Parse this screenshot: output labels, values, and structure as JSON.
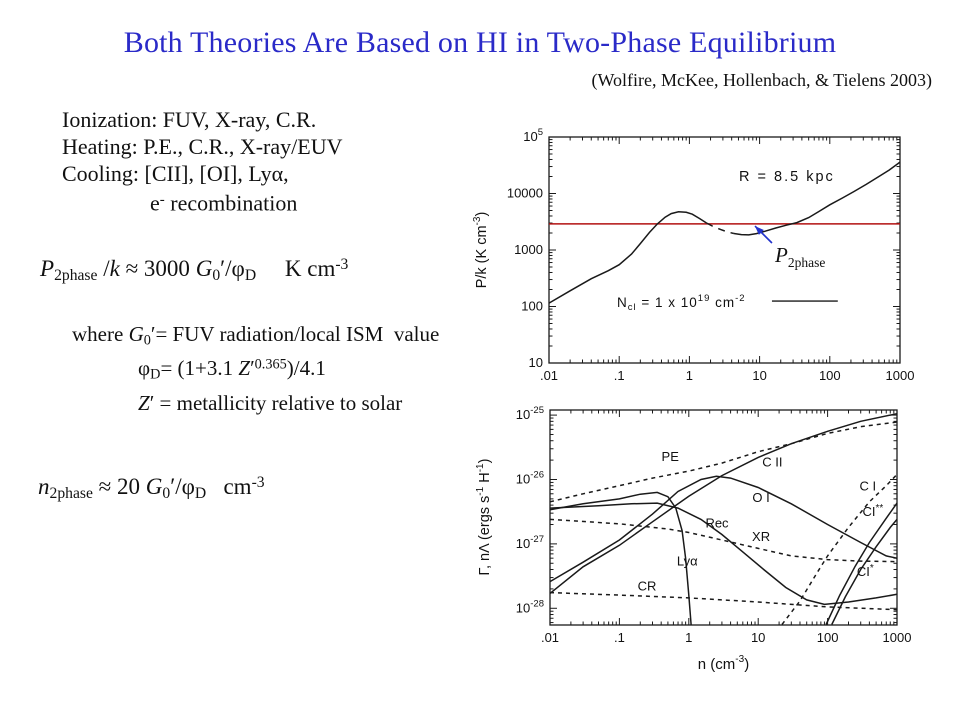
{
  "slide": {
    "title": "Both Theories Are Based on HI in Two-Phase Equilibrium",
    "title_color": "#2a2ac8",
    "citation": "(Wolfire, McKee, Hollenbach, & Tielens 2003)",
    "bullets": {
      "ionization": "Ionization: FUV, X-ray, C.R.",
      "heating": "Heating: P.E., C.R., X-ray/EUV",
      "cooling": "Cooling: [CII], [OI], Lyα,",
      "cooling2_html": "e<sup>-</sup> recombination"
    },
    "equations": {
      "p_eq_html": "<i>P</i><sub>2phase</sub> /<i>k</i> ≈ 3000 <i>G</i><sub>0</sub>′/φ<sub>D</sub>&nbsp;&nbsp;&nbsp;&nbsp; K cm<sup>-3</sup>",
      "where_html": "where <i>G</i><sub>0</sub>′= FUV radiation/local ISM&nbsp; value",
      "phi_html": "φ<sub>D</sub>= (1+3.1 <i>Z</i>′<sup>0.365</sup>)/4.1",
      "z_html": "<i>Z</i>′ = metallicity relative to solar",
      "n_eq_html": "<i>n</i><sub>2phase</sub> ≈ 20 <i>G</i><sub>0</sub>′/φ<sub>D</sub>&nbsp;&nbsp; cm<sup>-3</sup>"
    }
  },
  "colors": {
    "title_blue": "#2a2ac8",
    "red_line": "#b21111",
    "arrow_blue": "#2233cc",
    "ink": "#1a1a1a"
  },
  "chart_data": [
    {
      "id": "pk-vs-n",
      "type": "line",
      "xscale": "log",
      "yscale": "log",
      "xlim": [
        0.01,
        1000
      ],
      "ylim": [
        10,
        100000
      ],
      "ylabel": "P/k (K cm-3)",
      "xticks": [
        {
          "v": 0.01,
          "label": ".01"
        },
        {
          "v": 0.1,
          "label": ".1"
        },
        {
          "v": 1,
          "label": "1"
        },
        {
          "v": 10,
          "label": "10"
        },
        {
          "v": 100,
          "label": "100"
        },
        {
          "v": 1000,
          "label": "1000"
        }
      ],
      "yticks": [
        {
          "v": 100000,
          "runs": [
            {
              "t": "10"
            },
            {
              "t": "5",
              "dy": -6,
              "size": 9.5
            }
          ]
        },
        {
          "v": 10000,
          "runs": [
            {
              "t": "10000"
            }
          ]
        },
        {
          "v": 1000,
          "runs": [
            {
              "t": "1000"
            }
          ]
        },
        {
          "v": 100,
          "runs": [
            {
              "t": "100"
            }
          ]
        },
        {
          "v": 10,
          "runs": [
            {
              "t": "10"
            }
          ]
        }
      ],
      "ylabel_runs": [
        {
          "t": "P/k (K cm"
        },
        {
          "t": "-3",
          "dy": -6,
          "size": 10
        },
        {
          "t": ")"
        }
      ],
      "ylabel_pos": [
        16,
        145
      ],
      "hlines": [
        {
          "y": 2900,
          "color": "#b21111",
          "name": "p2phase-pressure-line"
        }
      ],
      "series": [
        {
          "name": "pk-warm-branch",
          "x": [
            0.01,
            0.02,
            0.04,
            0.07,
            0.1,
            0.15,
            0.2,
            0.27,
            0.35,
            0.45,
            0.55,
            0.7,
            0.9,
            1.1,
            1.4,
            1.75
          ],
          "y": [
            115,
            190,
            310,
            430,
            550,
            850,
            1300,
            2050,
            2900,
            3800,
            4400,
            4750,
            4650,
            4300,
            3600,
            3000
          ]
        },
        {
          "name": "pk-unstable-branch",
          "dash": "7,6",
          "x": [
            1.75,
            2.2,
            2.8,
            3.5,
            4.3
          ],
          "y": [
            3000,
            2600,
            2300,
            2080,
            1960
          ]
        },
        {
          "name": "pk-cold-branch",
          "x": [
            4.3,
            5.5,
            7,
            9,
            12,
            17,
            24,
            34,
            50,
            70,
            100,
            150,
            220,
            330,
            500,
            700,
            1000
          ],
          "y": [
            1960,
            1870,
            1850,
            1950,
            2150,
            2450,
            2750,
            3050,
            3750,
            4800,
            6300,
            8300,
            10800,
            14500,
            20000,
            26000,
            36000
          ]
        }
      ],
      "segments": [
        {
          "x1": 15,
          "y1": 125,
          "x2": 130,
          "y2": 125,
          "name": "ncl-legend-line"
        }
      ],
      "labels": [
        {
          "runs": [
            {
              "t": "R = 8.5  kpc"
            }
          ],
          "x": 24.5,
          "y": 16600,
          "anchor": "middle",
          "size": 14.5,
          "sp": 2,
          "name": "radius-label"
        },
        {
          "runs": [
            {
              "t": "N"
            },
            {
              "t": "cl",
              "dy": 3,
              "size": 9.5
            },
            {
              "t": " = 1 x 10"
            },
            {
              "t": "19",
              "dy": -6,
              "size": 9.5
            },
            {
              "t": " cm"
            },
            {
              "t": "-2",
              "dy": -6,
              "size": 9.5
            }
          ],
          "x": 0.093,
          "y": 97,
          "anchor": "start",
          "size": 13.5,
          "sp": 1,
          "name": "ncl-label"
        },
        {
          "runs": [
            {
              "t": "P",
              "it": 1,
              "ff": "\"Liberation Serif\",serif",
              "size": 21
            },
            {
              "t": "2phase",
              "dy": 5,
              "size": 13.5,
              "ff": "\"Liberation Serif\",serif"
            }
          ],
          "x": 16.6,
          "y": 612,
          "anchor": "start",
          "name": "p2phase-label"
        }
      ],
      "arrows": [
        {
          "x1": 15,
          "y1": 1330,
          "x2": 8.6,
          "y2": 2650,
          "color": "#2233cc",
          "name": "p2phase-arrow"
        }
      ]
    },
    {
      "id": "heating-cooling",
      "type": "line",
      "xscale": "log",
      "yscale": "log",
      "xlim": [
        0.01,
        1000
      ],
      "ylim": [
        5.5e-29,
        1.2e-25
      ],
      "xlabel": "n (cm-3)",
      "ylabel": "Gamma, n-Lambda (ergs s-1 H-1)",
      "xticks": [
        {
          "v": 0.01,
          "label": ".01"
        },
        {
          "v": 0.1,
          "label": ".1"
        },
        {
          "v": 1,
          "label": "1"
        },
        {
          "v": 10,
          "label": "10"
        },
        {
          "v": 100,
          "label": "100"
        },
        {
          "v": 1000,
          "label": "1000"
        }
      ],
      "yticks": [
        {
          "v": 1e-25,
          "runs": [
            {
              "t": "10"
            },
            {
              "t": "-25",
              "dy": -6,
              "size": 9.5
            }
          ]
        },
        {
          "v": 1e-26,
          "runs": [
            {
              "t": "10"
            },
            {
              "t": "-26",
              "dy": -6,
              "size": 9.5
            }
          ]
        },
        {
          "v": 1e-27,
          "runs": [
            {
              "t": "10"
            },
            {
              "t": "-27",
              "dy": -6,
              "size": 9.5
            }
          ]
        },
        {
          "v": 1e-28,
          "runs": [
            {
              "t": "10"
            },
            {
              "t": "-28",
              "dy": -6,
              "size": 9.5
            }
          ]
        }
      ],
      "ylabel_runs": [
        {
          "t": "Γ, nΛ (ergs s"
        },
        {
          "t": "-1",
          "dy": -6,
          "size": 10
        },
        {
          "t": " H"
        },
        {
          "t": "-1",
          "dy": -6,
          "size": 10
        },
        {
          "t": ")"
        }
      ],
      "ylabel_pos": [
        19,
        122
      ],
      "xlabel_runs": [
        {
          "t": "n (cm"
        },
        {
          "t": "-3",
          "dy": -7,
          "size": 10
        },
        {
          "t": ")"
        }
      ],
      "series": [
        {
          "name": "PE-heating",
          "dash": "4,4",
          "x": [
            0.01,
            0.03,
            0.1,
            0.3,
            1,
            3,
            10,
            30,
            100,
            300,
            1000
          ],
          "y": [
            4.5e-27,
            6e-27,
            8e-27,
            1.05e-26,
            1.35e-26,
            1.8e-26,
            2.7e-26,
            3.6e-26,
            5.2e-26,
            6.6e-26,
            7.8e-26
          ]
        },
        {
          "name": "CII-cooling",
          "x": [
            0.01,
            0.03,
            0.1,
            0.3,
            1,
            3,
            10,
            30,
            100,
            300,
            1000
          ],
          "y": [
            1.7e-28,
            4.4e-28,
            9.5e-28,
            2.2e-27,
            5.5e-27,
            1.15e-26,
            2.2e-26,
            3.6e-26,
            5.6e-26,
            8e-26,
            1.05e-25
          ]
        },
        {
          "name": "OI-cooling",
          "x": [
            0.01,
            0.03,
            0.1,
            0.3,
            0.7,
            1.5,
            2.5,
            4,
            10,
            30,
            100,
            300,
            700,
            1000
          ],
          "y": [
            2.6e-28,
            5.2e-28,
            1.15e-27,
            2.9e-27,
            6.5e-27,
            1e-26,
            1.12e-26,
            1.05e-26,
            7.5e-27,
            4.2e-27,
            2e-27,
            1.05e-27,
            6.5e-28,
            6e-28
          ]
        },
        {
          "name": "Lya-cooling",
          "x": [
            0.01,
            0.03,
            0.1,
            0.2,
            0.35,
            0.5,
            0.65,
            0.8,
            0.9,
            1.0,
            1.08
          ],
          "y": [
            3.4e-27,
            4.2e-27,
            5e-27,
            5.9e-27,
            6.3e-27,
            5.4e-27,
            3.6e-27,
            1.6e-27,
            6e-28,
            1.6e-28,
            5.6e-29
          ]
        },
        {
          "name": "Rec-cooling",
          "x": [
            0.01,
            0.05,
            0.15,
            0.35,
            0.7,
            1.5,
            3,
            6,
            12,
            25,
            50,
            90,
            200,
            500,
            1000
          ],
          "y": [
            3.6e-27,
            3.9e-27,
            4.2e-27,
            4.3e-27,
            3.6e-27,
            2.4e-27,
            1.4e-27,
            7.5e-28,
            4e-28,
            2.1e-28,
            1.35e-28,
            1.15e-28,
            1.25e-28,
            1.45e-28,
            1.65e-28
          ]
        },
        {
          "name": "XR-heating",
          "dash": "4,4",
          "x": [
            0.01,
            0.1,
            0.5,
            1,
            3,
            10,
            30,
            100,
            300,
            1000
          ],
          "y": [
            2.4e-27,
            2.05e-27,
            1.7e-27,
            1.5e-27,
            1.15e-27,
            8.5e-28,
            6.5e-28,
            5.7e-28,
            5.4e-28,
            5.3e-28
          ]
        },
        {
          "name": "CR-heating",
          "dash": "4,4",
          "x": [
            0.01,
            0.1,
            1,
            10,
            100,
            1000
          ],
          "y": [
            1.75e-28,
            1.6e-28,
            1.45e-28,
            1.25e-28,
            1.05e-28,
            9.5e-29
          ]
        },
        {
          "name": "CI-heating",
          "dash": "4,4",
          "x": [
            22,
            40,
            70,
            100,
            200,
            400,
            700,
            1000
          ],
          "y": [
            5.6e-29,
            1.3e-28,
            3.5e-28,
            6.5e-28,
            1.8e-27,
            4.5e-27,
            8e-27,
            1.2e-26
          ]
        },
        {
          "name": "CI-starstar-cooling",
          "x": [
            95,
            150,
            250,
            400,
            700,
            1000
          ],
          "y": [
            5.6e-29,
            1.6e-28,
            4.5e-28,
            1.05e-27,
            2.5e-27,
            4.3e-27
          ]
        },
        {
          "name": "CI-star-cooling",
          "x": [
            115,
            180,
            300,
            500,
            800,
            1000
          ],
          "y": [
            5.6e-29,
            1.5e-28,
            4e-28,
            9e-28,
            1.8e-27,
            2.4e-27
          ]
        }
      ],
      "labels": [
        {
          "runs": [
            {
              "t": "PE"
            }
          ],
          "x": 0.54,
          "y": 1.95e-26,
          "anchor": "middle",
          "name": "label-PE"
        },
        {
          "runs": [
            {
              "t": "C II"
            }
          ],
          "x": 16,
          "y": 1.6e-26,
          "anchor": "middle",
          "name": "label-CII"
        },
        {
          "runs": [
            {
              "t": "O I"
            }
          ],
          "x": 11,
          "y": 4.5e-27,
          "anchor": "middle",
          "name": "label-OI"
        },
        {
          "runs": [
            {
              "t": "Rec"
            }
          ],
          "x": 2.55,
          "y": 1.8e-27,
          "anchor": "middle",
          "name": "label-Rec"
        },
        {
          "runs": [
            {
              "t": "XR"
            }
          ],
          "x": 11,
          "y": 1.1e-27,
          "anchor": "middle",
          "name": "label-XR"
        },
        {
          "runs": [
            {
              "t": "Lyα"
            }
          ],
          "x": 0.95,
          "y": 4.6e-28,
          "anchor": "middle",
          "name": "label-Lya"
        },
        {
          "runs": [
            {
              "t": "CR"
            }
          ],
          "x": 0.25,
          "y": 1.9e-28,
          "anchor": "middle",
          "name": "label-CR"
        },
        {
          "runs": [
            {
              "t": "C I"
            }
          ],
          "x": 380,
          "y": 6.8e-27,
          "anchor": "middle",
          "name": "label-CI"
        },
        {
          "runs": [
            {
              "t": "CI"
            },
            {
              "t": "**",
              "dy": -5,
              "size": 10
            }
          ],
          "x": 450,
          "y": 2.7e-27,
          "anchor": "middle",
          "name": "label-CI-starstar"
        },
        {
          "runs": [
            {
              "t": "CI"
            },
            {
              "t": "*",
              "dy": -5,
              "size": 10
            }
          ],
          "x": 350,
          "y": 3.2e-28,
          "anchor": "middle",
          "name": "label-CI-star"
        }
      ]
    }
  ]
}
